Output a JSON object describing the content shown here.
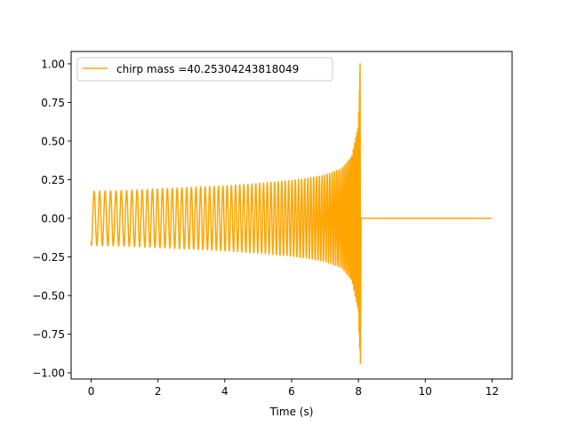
{
  "chart_data": {
    "type": "line",
    "title": "",
    "xlabel": "Time (s)",
    "ylabel": "",
    "xlim": [
      -0.6,
      12.6
    ],
    "ylim": [
      -1.04,
      1.08
    ],
    "xticks": [
      0,
      2,
      4,
      6,
      8,
      10,
      12
    ],
    "xtick_labels": [
      "0",
      "2",
      "4",
      "6",
      "8",
      "10",
      "12"
    ],
    "yticks": [
      -1.0,
      -0.75,
      -0.5,
      -0.25,
      0.0,
      0.25,
      0.5,
      0.75,
      1.0
    ],
    "ytick_labels": [
      "−1.00",
      "−0.75",
      "−0.50",
      "−0.25",
      "0.00",
      "0.25",
      "0.50",
      "0.75",
      "1.00"
    ],
    "grid": false,
    "legend_position": "upper-left",
    "series": [
      {
        "name": "chirp mass =40.25304243818049",
        "color": "#ffa500",
        "signal": {
          "form": "inspiral-chirp",
          "t_start": 0.0,
          "t_merger": 8.05,
          "t_end": 12.0,
          "amplitude_start": 0.175,
          "peak_max": 1.0,
          "peak_min": -0.94,
          "initial_value": -0.15,
          "post_merger_value": 0.0
        },
        "envelope": {
          "t": [
            0.0,
            1.0,
            2.0,
            3.0,
            4.0,
            5.0,
            6.0,
            6.5,
            7.0,
            7.5,
            7.8,
            8.0,
            8.05
          ],
          "upper": [
            0.175,
            0.18,
            0.19,
            0.2,
            0.21,
            0.225,
            0.245,
            0.26,
            0.28,
            0.32,
            0.4,
            0.6,
            1.0
          ],
          "lower": [
            -0.175,
            -0.18,
            -0.19,
            -0.2,
            -0.21,
            -0.225,
            -0.245,
            -0.26,
            -0.28,
            -0.32,
            -0.4,
            -0.6,
            -0.94
          ]
        }
      }
    ]
  }
}
